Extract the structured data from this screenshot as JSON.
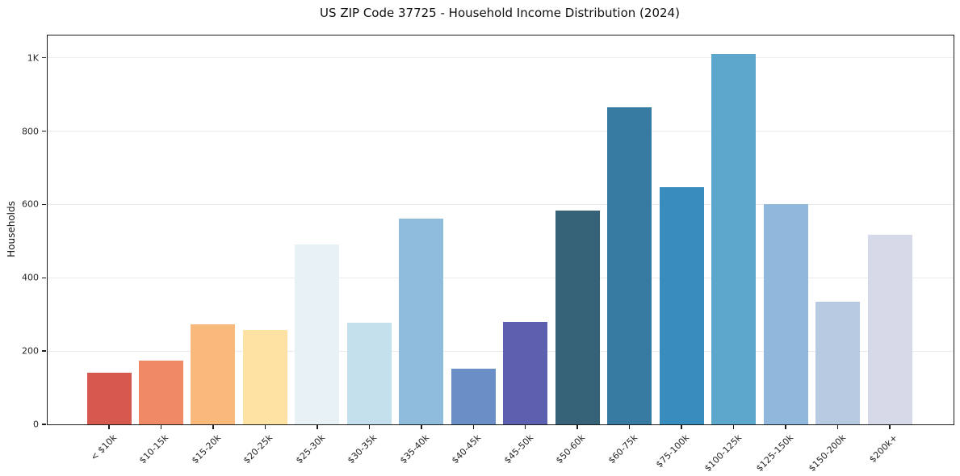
{
  "chart_data": {
    "type": "bar",
    "title": "US ZIP Code 37725 - Household Income Distribution (2024)",
    "xlabel": "",
    "ylabel": "Households",
    "categories": [
      "< $10k",
      "$10-15k",
      "$15-20k",
      "$20-25k",
      "$25-30k",
      "$30-35k",
      "$35-40k",
      "$40-45k",
      "$45-50k",
      "$50-60k",
      "$60-75k",
      "$75-100k",
      "$100-125k",
      "$125-150k",
      "$150-200k",
      "$200k+"
    ],
    "values": [
      142,
      174,
      273,
      258,
      491,
      278,
      562,
      152,
      280,
      584,
      865,
      648,
      1010,
      600,
      335,
      518
    ],
    "bar_colors": [
      "#d6584f",
      "#f08a66",
      "#fab97c",
      "#fde2a3",
      "#e7f1f6",
      "#c3e0ec",
      "#8fbcdc",
      "#6a8fc6",
      "#5c60ae",
      "#356277",
      "#377ba3",
      "#388cbe",
      "#5da7cc",
      "#8fb8dc",
      "#b8c9e2",
      "#d6d9e7"
    ],
    "ytick_values": [
      0,
      200,
      400,
      600,
      800,
      1000
    ],
    "ytick_labels": [
      "0",
      "200",
      "400",
      "600",
      "800",
      "1K"
    ],
    "ylim": [
      0,
      1061
    ],
    "grid": "horizontal",
    "gridline_color": "#ebebeb",
    "frame_color": "#1c1c1c",
    "text_color": "#262626",
    "x_tick_rotation_deg": 45,
    "legend": "none"
  }
}
